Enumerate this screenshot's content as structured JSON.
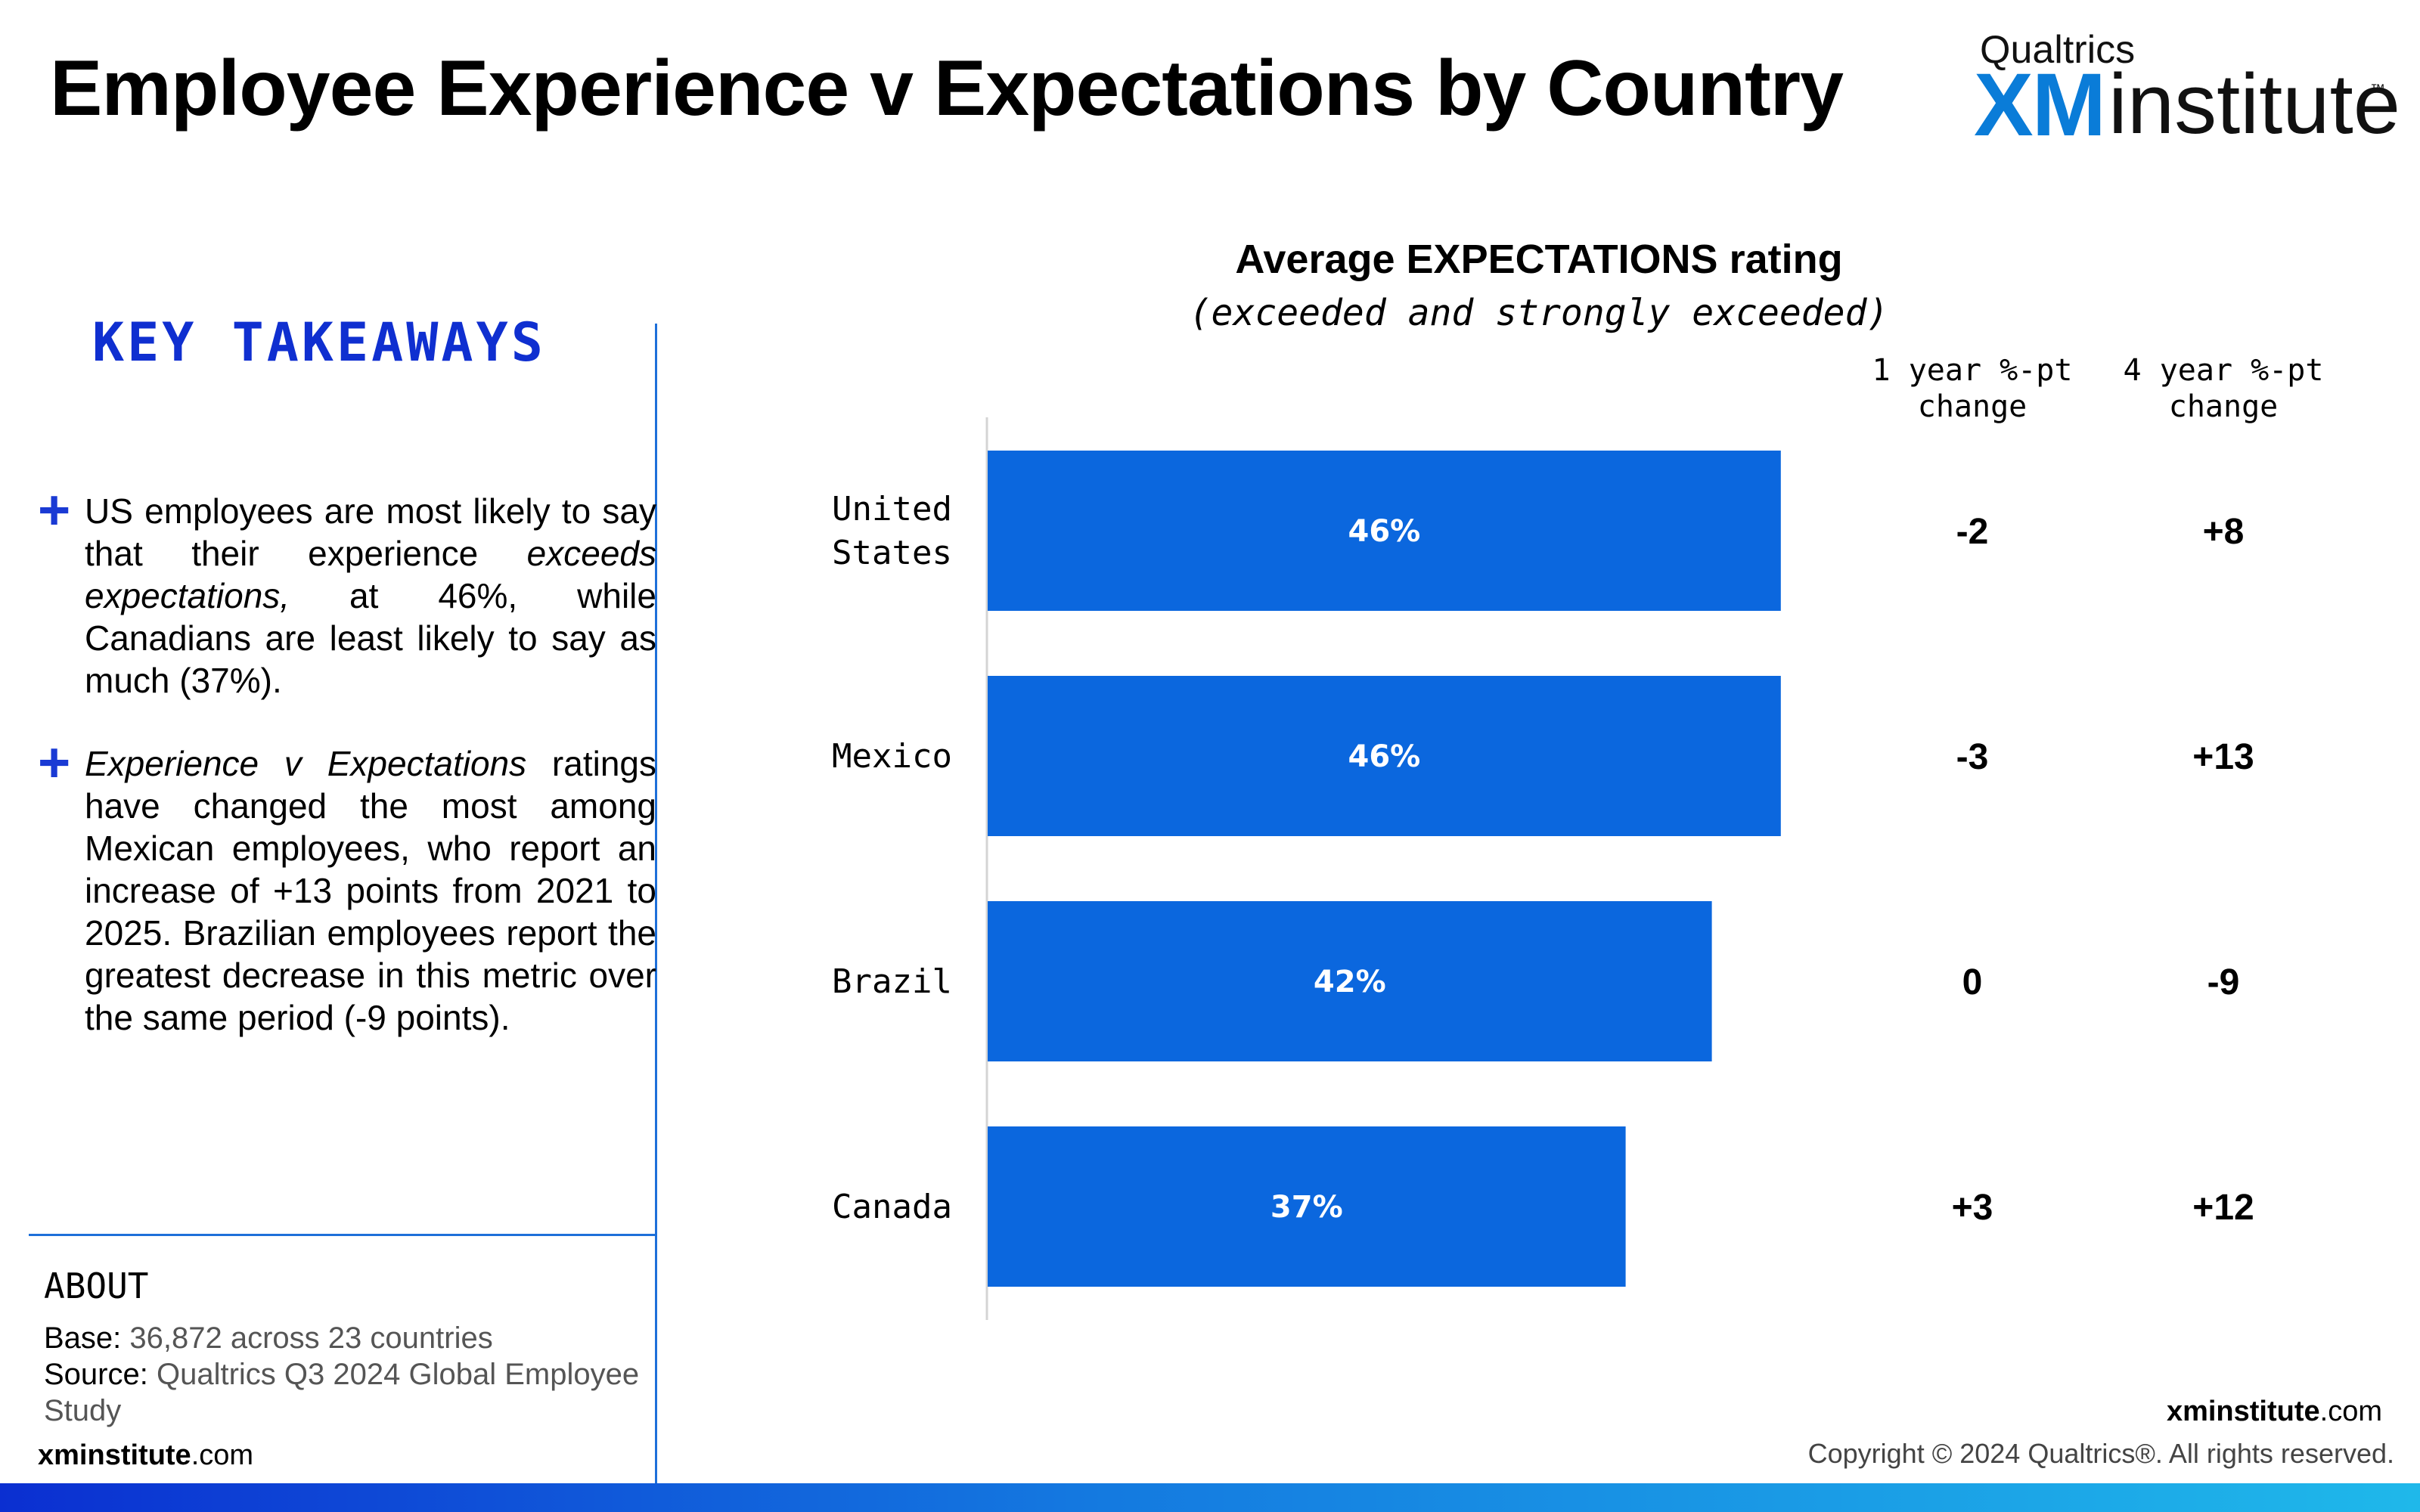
{
  "header": {
    "title": "Employee Experience v Expectations by Country",
    "logo": {
      "top": "Qualtrics",
      "xm": "XM",
      "word": "institute",
      "tm": "™"
    }
  },
  "takeaways": {
    "heading": "KEY TAKEAWAYS",
    "items": [
      {
        "plus": "+",
        "html": "US employees are most likely to say that their experience <i>exceeds expectations,</i> at 46%, while Canadians are least likely to say as much (37%)."
      },
      {
        "plus": "+",
        "html": "<i>Experience v Expectations</i> ratings have changed the most among Mexican employees, who report an increase of +13 points from 2021 to 2025. Brazilian employees report the greatest decrease in this metric over the same period (-9 points)."
      }
    ]
  },
  "about": {
    "heading": "ABOUT",
    "base_label": "Base:",
    "base_value": " 36,872 across 23 countries",
    "source_label": "Source:",
    "source_value": " Qualtrics Q3 2024 Global Employee Study"
  },
  "footer": {
    "brand_bold": "xminstitute",
    "brand_suffix": ".com",
    "copyright": "Copyright © 2024 Qualtrics®. All rights reserved."
  },
  "chart_data": {
    "type": "bar",
    "orientation": "horizontal",
    "title": "Average EXPECTATIONS rating",
    "subtitle": "(exceeded and strongly exceeded)",
    "categories": [
      "United States",
      "Mexico",
      "Brazil",
      "Canada"
    ],
    "category_lines": [
      [
        "United",
        "States"
      ],
      [
        "Mexico"
      ],
      [
        "Brazil"
      ],
      [
        "Canada"
      ]
    ],
    "values": [
      46,
      46,
      42,
      37
    ],
    "value_labels": [
      "46%",
      "46%",
      "42%",
      "37%"
    ],
    "bar_color": "#0b67de",
    "columns": [
      {
        "header_lines": [
          "1 year %-pt",
          "change"
        ],
        "values": [
          "-2",
          "-3",
          "0",
          "+3"
        ]
      },
      {
        "header_lines": [
          "4 year %-pt",
          "change"
        ],
        "values": [
          "+8",
          "+13",
          "-9",
          "+12"
        ]
      }
    ]
  }
}
